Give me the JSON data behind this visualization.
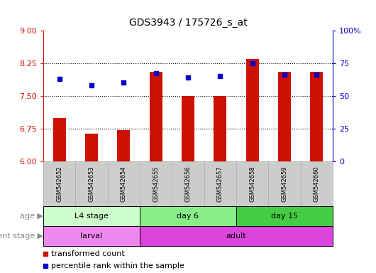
{
  "title": "GDS3943 / 175726_s_at",
  "samples": [
    "GSM542652",
    "GSM542653",
    "GSM542654",
    "GSM542655",
    "GSM542656",
    "GSM542657",
    "GSM542658",
    "GSM542659",
    "GSM542660"
  ],
  "transformed_count": [
    7.0,
    6.63,
    6.72,
    8.05,
    7.5,
    7.5,
    8.35,
    8.05,
    8.05
  ],
  "percentile_rank": [
    63,
    58,
    60,
    67,
    64,
    65,
    75,
    66,
    66
  ],
  "ylim_left": [
    6,
    9
  ],
  "ylim_right": [
    0,
    100
  ],
  "yticks_left": [
    6,
    6.75,
    7.5,
    8.25,
    9
  ],
  "yticks_right": [
    0,
    25,
    50,
    75,
    100
  ],
  "ytick_labels_right": [
    "0",
    "25",
    "50",
    "75",
    "100%"
  ],
  "bar_color": "#cc1100",
  "dot_color": "#0000cc",
  "age_groups": [
    {
      "label": "L4 stage",
      "start": 0,
      "end": 3,
      "color": "#ccffcc"
    },
    {
      "label": "day 6",
      "start": 3,
      "end": 6,
      "color": "#88ee88"
    },
    {
      "label": "day 15",
      "start": 6,
      "end": 9,
      "color": "#44cc44"
    }
  ],
  "dev_groups": [
    {
      "label": "larval",
      "start": 0,
      "end": 3,
      "color": "#ee88ee"
    },
    {
      "label": "adult",
      "start": 3,
      "end": 9,
      "color": "#dd44dd"
    }
  ],
  "sample_bg_color": "#cccccc",
  "legend_red": "transformed count",
  "legend_blue": "percentile rank within the sample",
  "age_label": "age",
  "dev_label": "development stage",
  "axis_left_color": "#cc1100",
  "axis_right_color": "#0000cc",
  "label_color": "#888888"
}
